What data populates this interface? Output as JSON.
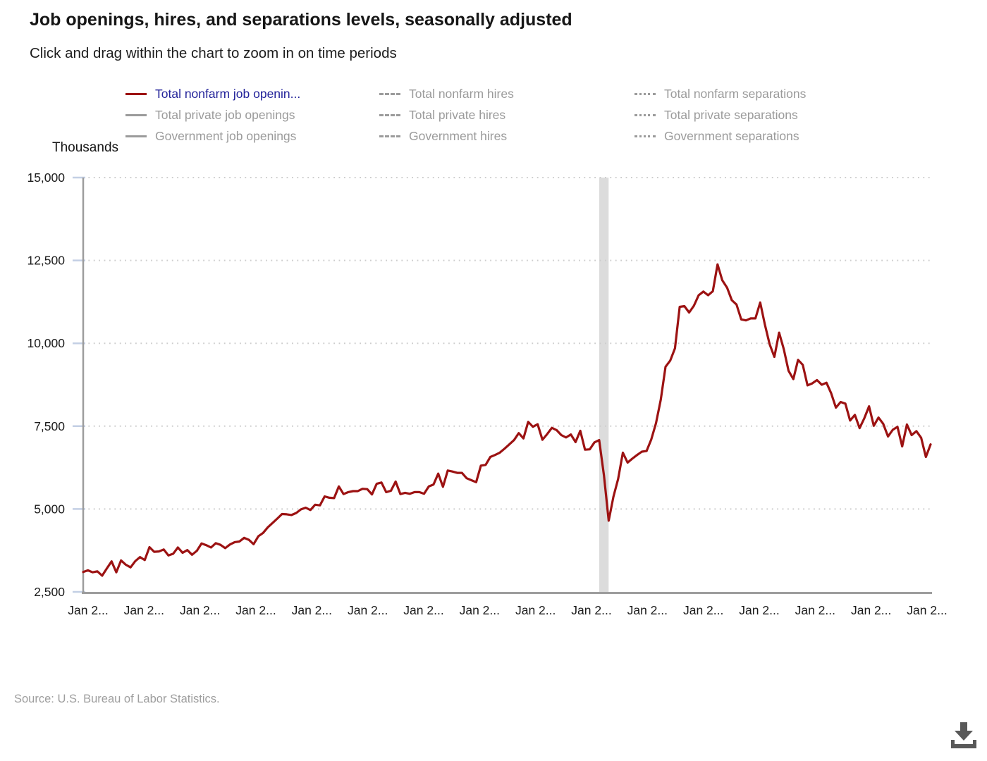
{
  "title": "Job openings, hires, and separations levels, seasonally adjusted",
  "subtitle": "Click and drag within the chart to zoom in on time periods",
  "legend": {
    "inactive_color": "#9b9b9b",
    "active_text_color": "#23239a",
    "columns": [
      {
        "style": "solid",
        "items": [
          {
            "label": "Total nonfarm job openin...",
            "swatch_color": "#9C1212",
            "text_color": "#23239a",
            "active": true
          },
          {
            "label": "Total private job openings",
            "swatch_color": "#9b9b9b",
            "text_color": "#9b9b9b",
            "active": false
          },
          {
            "label": "Government job openings",
            "swatch_color": "#9b9b9b",
            "text_color": "#9b9b9b",
            "active": false
          }
        ]
      },
      {
        "style": "dashed",
        "items": [
          {
            "label": "Total nonfarm hires",
            "swatch_color": "#9b9b9b",
            "text_color": "#9b9b9b",
            "active": false
          },
          {
            "label": "Total private hires",
            "swatch_color": "#9b9b9b",
            "text_color": "#9b9b9b",
            "active": false
          },
          {
            "label": "Government hires",
            "swatch_color": "#9b9b9b",
            "text_color": "#9b9b9b",
            "active": false
          }
        ]
      },
      {
        "style": "dotted",
        "items": [
          {
            "label": "Total nonfarm separations",
            "swatch_color": "#9b9b9b",
            "text_color": "#9b9b9b",
            "active": false
          },
          {
            "label": "Total private separations",
            "swatch_color": "#9b9b9b",
            "text_color": "#9b9b9b",
            "active": false
          },
          {
            "label": "Government separations",
            "swatch_color": "#9b9b9b",
            "text_color": "#9b9b9b",
            "active": false
          }
        ]
      }
    ]
  },
  "axis": {
    "y_title": "Thousands",
    "y_tick_labels": [
      "15,000",
      "12,500",
      "10,000",
      "7,500",
      "5,000",
      "2,500"
    ],
    "x_tick_labels": [
      "Jan 2...",
      "Jan 2...",
      "Jan 2...",
      "Jan 2...",
      "Jan 2...",
      "Jan 2...",
      "Jan 2...",
      "Jan 2...",
      "Jan 2...",
      "Jan 2...",
      "Jan 2...",
      "Jan 2...",
      "Jan 2...",
      "Jan 2...",
      "Jan 2...",
      "Jan 2..."
    ],
    "label_color": "#1b1b1b",
    "grid_color": "#cdcdcd",
    "axis_line_color": "#9d9d9d",
    "tick_mark_color": "#c3cfe4"
  },
  "source": "Source: U.S. Bureau of Labor Statistics.",
  "download_icon_color": "#595959",
  "chart_data": {
    "type": "line",
    "title": "Job openings, hires, and separations levels, seasonally adjusted",
    "ylabel": "Thousands",
    "ylim": [
      2500,
      15000
    ],
    "y_gridlines": [
      5000,
      7500,
      10000,
      12500,
      15000
    ],
    "grid": "dotted horizontal",
    "legend_position": "top",
    "recession_band": {
      "color": "#dcdcdc",
      "start_month_index": 109,
      "end_month_index": 111,
      "note": "Feb-Apr 2020 recession shading"
    },
    "x_start": "Jan 2011",
    "x_end": "Dec 2025",
    "frequency": "monthly",
    "series": [
      {
        "name": "Total nonfarm job openings",
        "color": "#9C1212",
        "values": [
          3100,
          3150,
          3090,
          3120,
          2990,
          3210,
          3420,
          3090,
          3450,
          3320,
          3240,
          3430,
          3550,
          3460,
          3850,
          3710,
          3720,
          3780,
          3600,
          3650,
          3840,
          3680,
          3760,
          3620,
          3740,
          3960,
          3910,
          3840,
          3970,
          3920,
          3820,
          3930,
          4000,
          4020,
          4130,
          4070,
          3940,
          4180,
          4280,
          4450,
          4580,
          4710,
          4850,
          4840,
          4820,
          4880,
          4990,
          5040,
          4970,
          5130,
          5110,
          5380,
          5340,
          5330,
          5680,
          5450,
          5510,
          5540,
          5540,
          5610,
          5600,
          5440,
          5760,
          5800,
          5510,
          5550,
          5830,
          5450,
          5490,
          5460,
          5510,
          5510,
          5460,
          5680,
          5740,
          6070,
          5670,
          6160,
          6130,
          6090,
          6090,
          5930,
          5870,
          5810,
          6310,
          6330,
          6570,
          6630,
          6700,
          6820,
          6950,
          7080,
          7290,
          7130,
          7630,
          7480,
          7560,
          7090,
          7260,
          7450,
          7380,
          7230,
          7160,
          7250,
          7020,
          7360,
          6790,
          6800,
          7010,
          7080,
          6010,
          4650,
          5370,
          5910,
          6700,
          6400,
          6520,
          6630,
          6730,
          6750,
          7100,
          7590,
          8290,
          9290,
          9480,
          9850,
          11100,
          11120,
          10930,
          11130,
          11450,
          11560,
          11450,
          11570,
          12380,
          11900,
          11680,
          11300,
          11170,
          10720,
          10690,
          10750,
          10750,
          11230,
          10560,
          9970,
          9590,
          10320,
          9820,
          9170,
          8920,
          9500,
          9350,
          8730,
          8790,
          8890,
          8750,
          8810,
          8490,
          8060,
          8230,
          8180,
          7670,
          7840,
          7440,
          7740,
          8100,
          7510,
          7760,
          7570,
          7190,
          7390,
          7480,
          6890,
          7550,
          7230,
          7350,
          7150,
          6570,
          6950
        ]
      }
    ]
  }
}
